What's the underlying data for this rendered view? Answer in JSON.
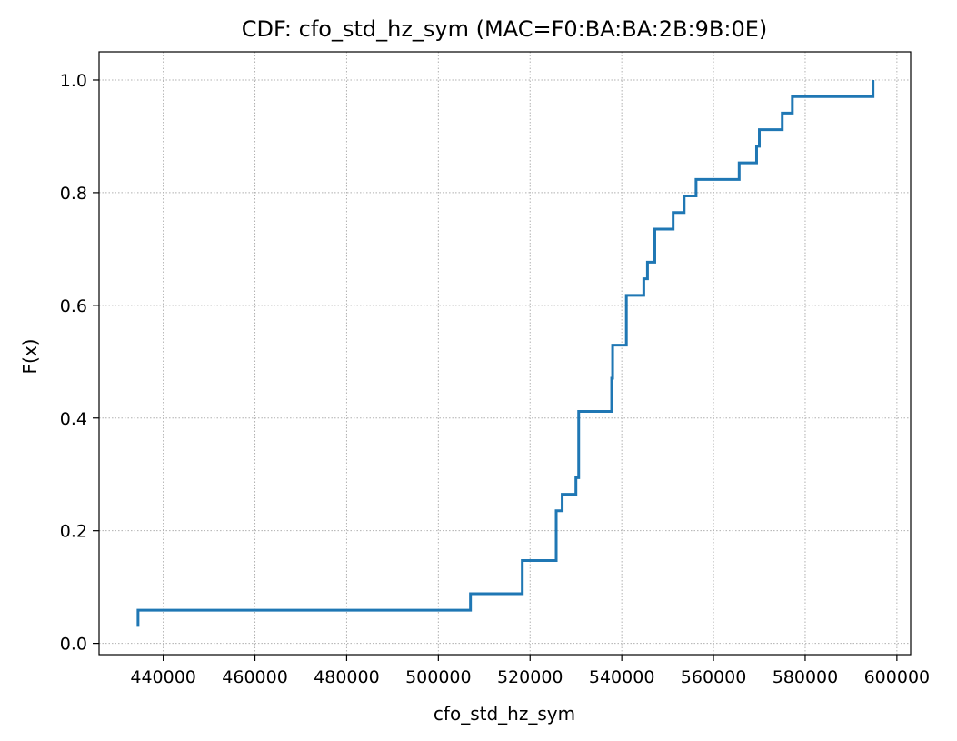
{
  "chart_data": {
    "type": "line",
    "drawstyle": "steps-post",
    "title": "CDF: cfo_std_hz_sym (MAC=F0:BA:BA:2B:9B:0E)",
    "xlabel": "cfo_std_hz_sym",
    "ylabel": "F(x)",
    "xlim": [
      426000,
      603000
    ],
    "ylim": [
      -0.02,
      1.05
    ],
    "xticks": [
      440000,
      460000,
      480000,
      500000,
      520000,
      540000,
      560000,
      580000,
      600000
    ],
    "xtick_labels": [
      "440000",
      "460000",
      "480000",
      "500000",
      "520000",
      "540000",
      "560000",
      "580000",
      "600000"
    ],
    "yticks": [
      0.0,
      0.2,
      0.4,
      0.6,
      0.8,
      1.0
    ],
    "ytick_labels": [
      "0.0",
      "0.2",
      "0.4",
      "0.6",
      "0.8",
      "1.0"
    ],
    "grid": true,
    "color": "#1f77b4",
    "series": [
      {
        "x": [
          434500,
          434500,
          507000,
          518300,
          525700,
          527000,
          530000,
          530600,
          537800,
          538000,
          541000,
          544800,
          545600,
          547200,
          551200,
          553600,
          556200,
          565600,
          569400,
          570000,
          575000,
          577200,
          594800
        ],
        "y": [
          0.0294,
          0.0588,
          0.0882,
          0.1471,
          0.2353,
          0.2647,
          0.2941,
          0.4118,
          0.4706,
          0.5294,
          0.6176,
          0.6471,
          0.6765,
          0.7353,
          0.7647,
          0.7941,
          0.8235,
          0.8529,
          0.8824,
          0.9118,
          0.9412,
          0.9706,
          1.0
        ]
      }
    ]
  }
}
